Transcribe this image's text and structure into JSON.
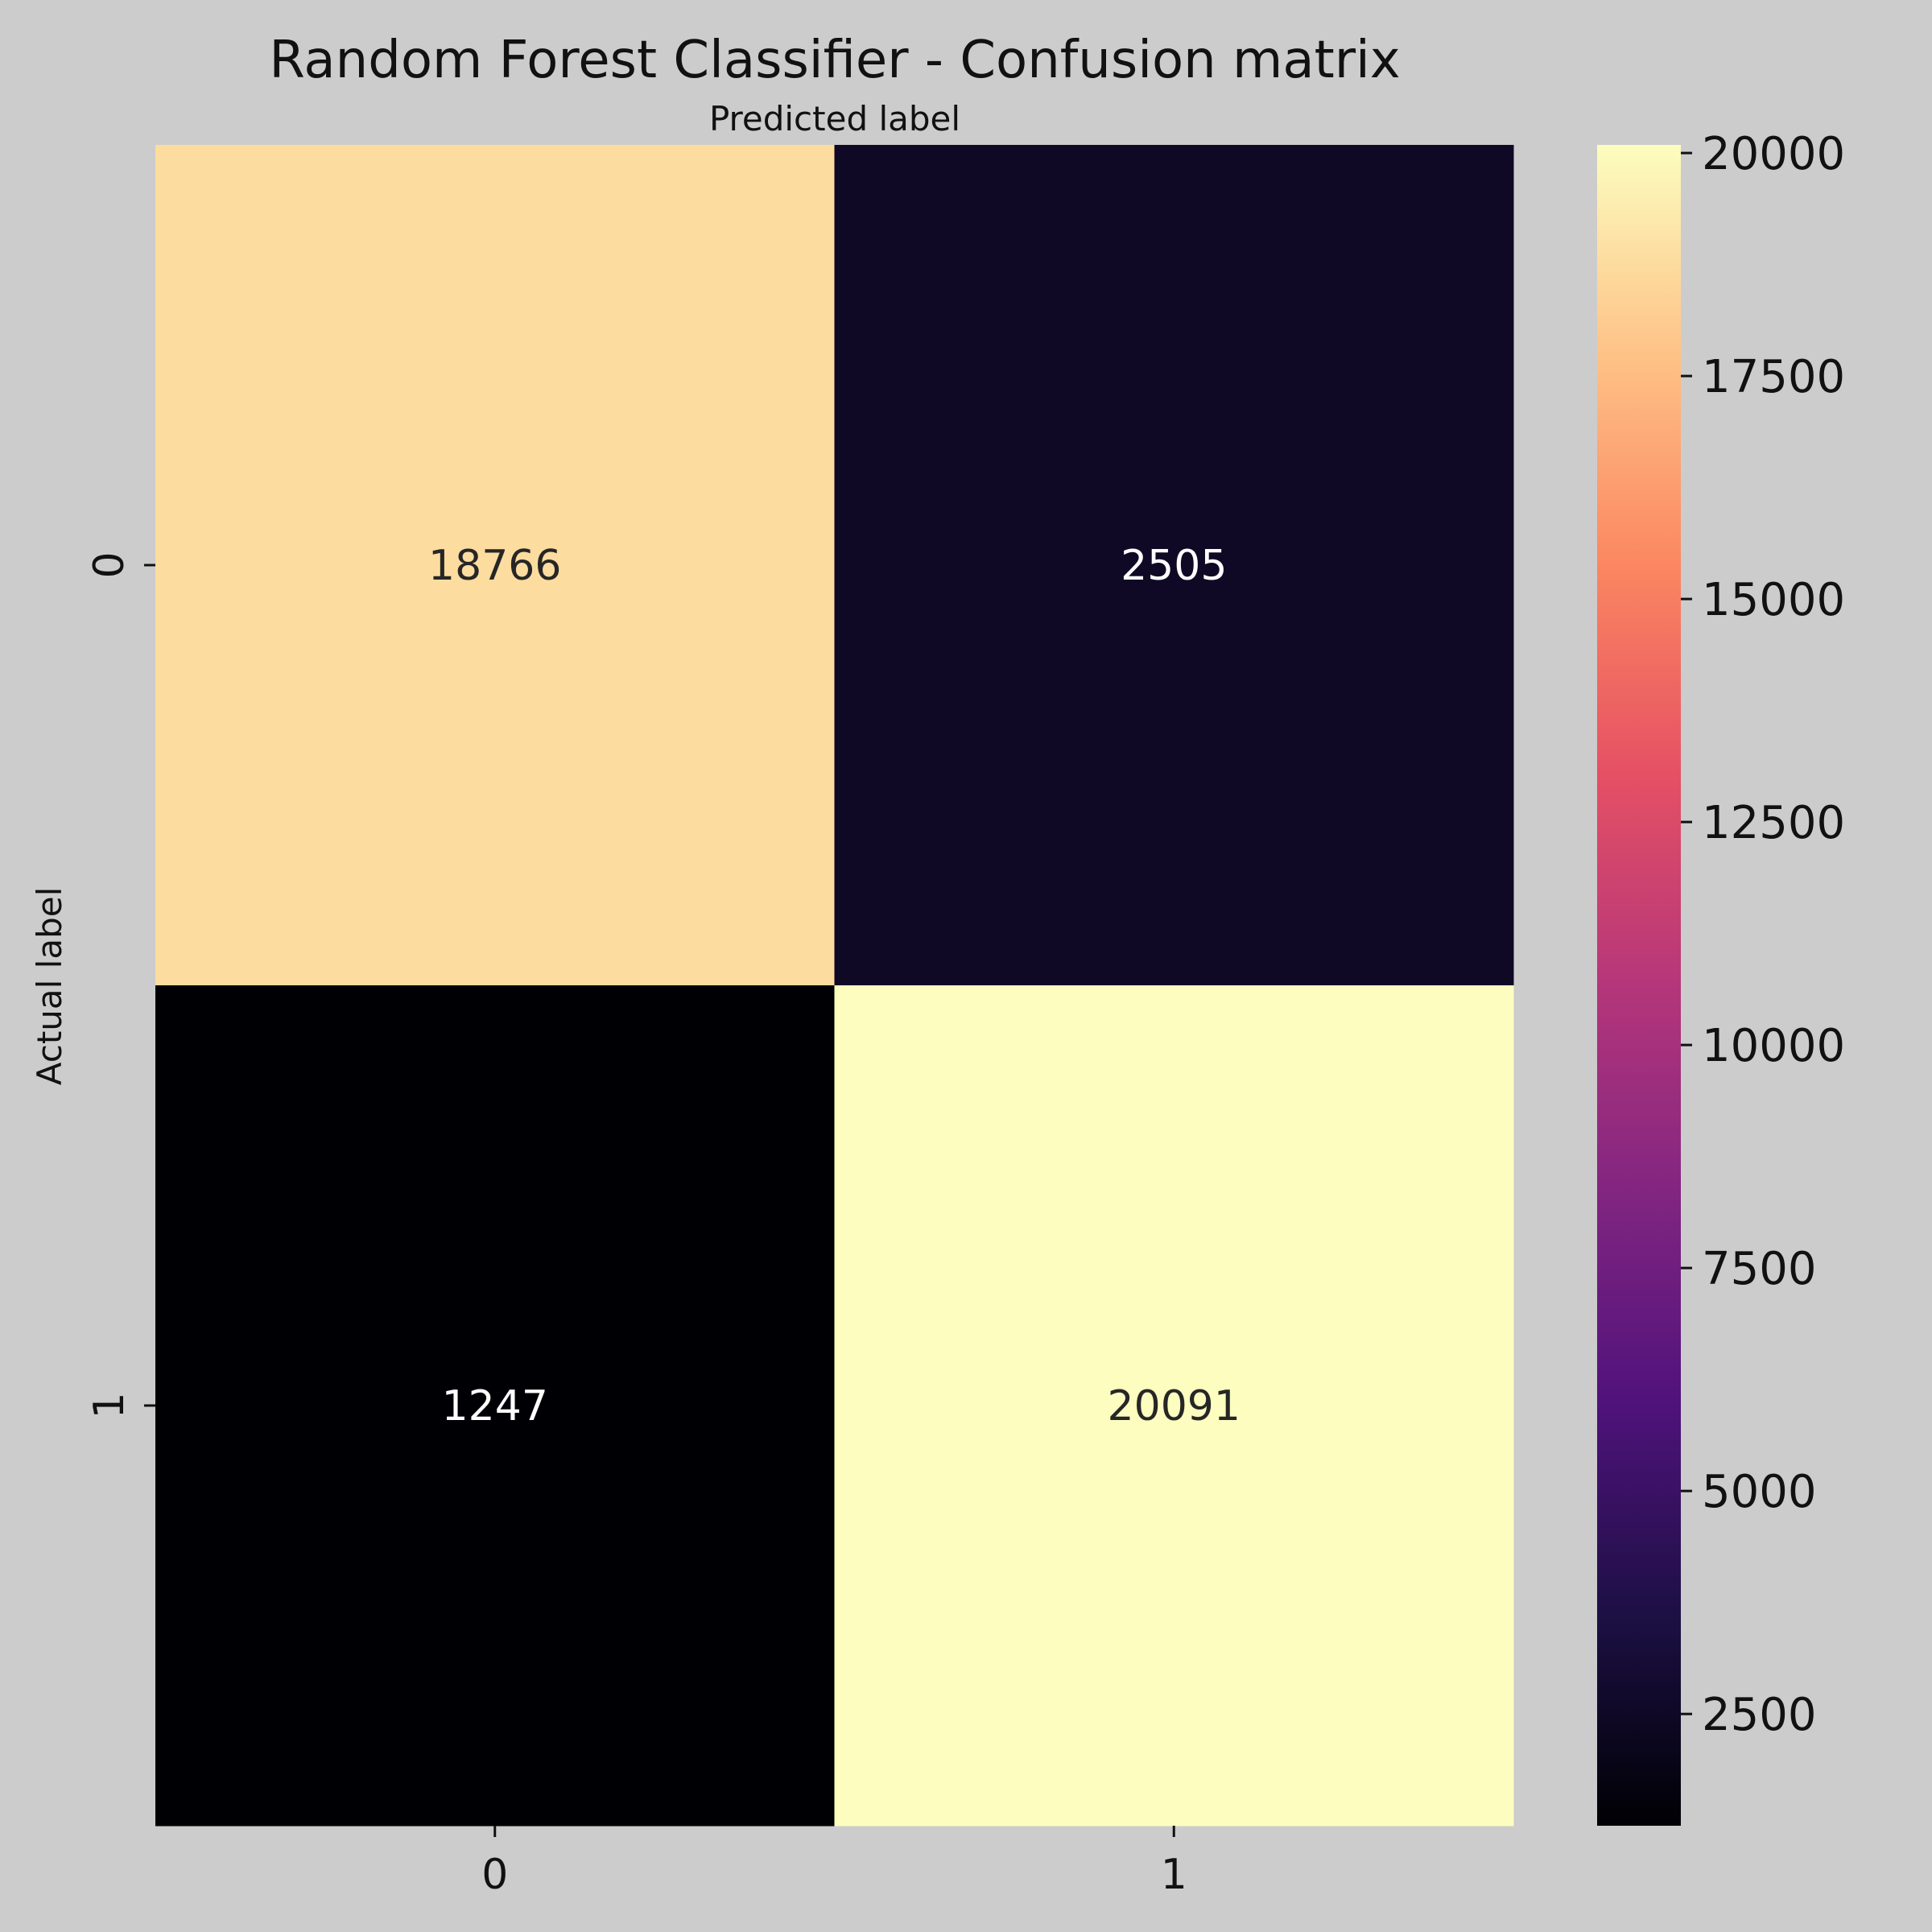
{
  "chart_data": {
    "type": "heatmap",
    "title": "Random Forest Classifier - Confusion matrix",
    "xlabel": "Predicted label",
    "ylabel": "Actual label",
    "x_categories": [
      "0",
      "1"
    ],
    "y_categories": [
      "0",
      "1"
    ],
    "values": [
      [
        18766,
        2505
      ],
      [
        1247,
        20091
      ]
    ],
    "colormap": "magma",
    "colorbar": {
      "range": [
        1247,
        20091
      ],
      "ticks": [
        2500,
        5000,
        7500,
        10000,
        12500,
        15000,
        17500,
        20000
      ]
    },
    "xlabel_position": "top",
    "grid": false,
    "background_color": "#cccccc"
  }
}
